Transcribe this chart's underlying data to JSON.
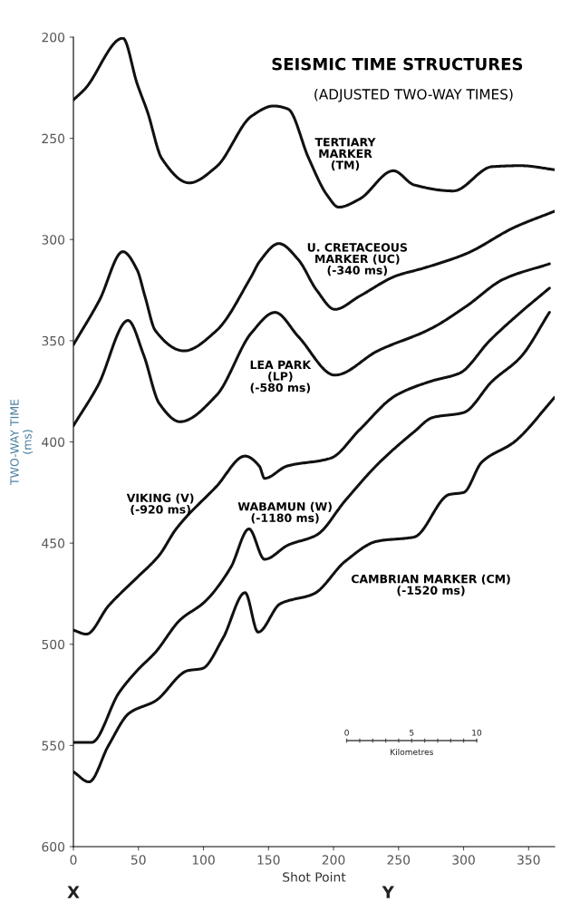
{
  "chart_data": {
    "type": "line",
    "title": "SEISMIC TIME STRUCTURES",
    "subtitle": "(ADJUSTED TWO-WAY TIMES)",
    "xlabel": "Shot Point",
    "ylabel": "TWO-WAY TIME\n(ms)",
    "xlim": [
      0,
      370
    ],
    "ylim": [
      600,
      200
    ],
    "xticks": [
      0,
      50,
      100,
      150,
      200,
      250,
      300,
      350
    ],
    "yticks": [
      200,
      250,
      300,
      350,
      400,
      450,
      500,
      550,
      600
    ],
    "grid": false,
    "legend": false,
    "marker": "none",
    "line_style": "solid",
    "series": [
      {
        "name": "TERTIARY\nMARKER\n(TM)",
        "color": "#111111",
        "x": [
          0,
          9,
          38,
          49,
          57,
          68,
          89,
          110,
          137,
          154,
          165,
          181,
          195,
          204,
          220,
          246,
          262,
          292,
          322,
          344,
          370
        ],
        "values": [
          231,
          225.5,
          200.5,
          223,
          237,
          260,
          272,
          264,
          239,
          234,
          235.5,
          260,
          278,
          284,
          280,
          266,
          273,
          276,
          264,
          263.5,
          265.5
        ]
      },
      {
        "name": "U. CRETACEOUS\nMARKER (UC)\n(-340 ms)",
        "color": "#111111",
        "x": [
          0,
          20,
          38,
          49,
          55,
          63,
          85,
          110,
          137,
          143,
          158,
          173,
          187,
          201,
          220,
          248,
          270,
          302,
          339,
          370
        ],
        "values": [
          352,
          330,
          306,
          315,
          328,
          345,
          355,
          345,
          318,
          311,
          302,
          310,
          325,
          334.5,
          328,
          318,
          314,
          307,
          294,
          286
        ]
      },
      {
        "name": "LEA PARK\n(LP)\n(-580 ms)",
        "color": "#111111",
        "x": [
          0,
          19,
          42,
          54,
          66,
          82,
          110,
          137,
          155,
          173,
          201,
          234,
          275,
          302,
          331,
          366
        ],
        "values": [
          392,
          372,
          340,
          357,
          381,
          390,
          377,
          346,
          336,
          348,
          367,
          355,
          344,
          333,
          319.5,
          312
        ]
      },
      {
        "name": "VIKING (V)\n(-920 ms)",
        "color": "#111111",
        "x": [
          0,
          10,
          27,
          49,
          66,
          79,
          110,
          132,
          143,
          147,
          164,
          198,
          220,
          248,
          275,
          297,
          320,
          342,
          366
        ],
        "values": [
          493,
          495,
          481,
          467,
          456,
          443,
          422,
          407,
          412,
          418,
          412,
          408,
          394,
          377,
          370,
          366,
          350,
          337,
          324
        ]
      },
      {
        "name": "WABAMUN (W)\n(-1180 ms)",
        "color": "#111111",
        "x": [
          0,
          14,
          35,
          49,
          63,
          82,
          101,
          121,
          135,
          147,
          165,
          187,
          209,
          234,
          262,
          276,
          300,
          322,
          344,
          366
        ],
        "values": [
          548.5,
          548.5,
          524,
          513,
          504,
          488,
          479,
          462,
          443,
          458,
          451,
          446,
          429,
          411,
          395,
          388,
          385.5,
          370,
          358,
          336
        ]
      },
      {
        "name": "CAMBRIAN MARKER (CM)\n(-1520 ms)",
        "color": "#111111",
        "x": [
          0,
          12,
          27,
          43,
          63,
          88,
          99,
          115,
          132,
          142,
          159,
          185,
          209,
          234,
          262,
          289,
          300,
          314,
          339,
          370
        ],
        "values": [
          563,
          568,
          550,
          534,
          528,
          513,
          512,
          497,
          474.5,
          494,
          480,
          475,
          459,
          449,
          447,
          426,
          425,
          410,
          400,
          378
        ]
      }
    ],
    "annotations": [
      "0",
      "5",
      "10",
      "Kilometres",
      "X",
      "Y"
    ]
  }
}
